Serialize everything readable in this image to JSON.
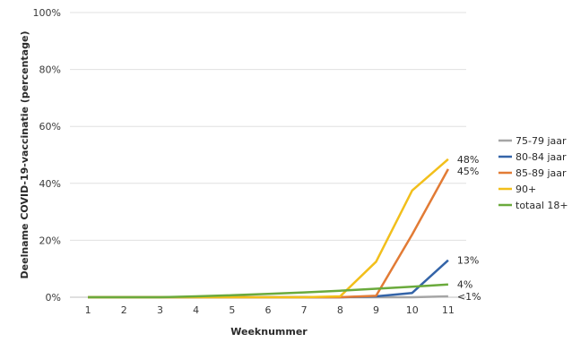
{
  "chart_data": {
    "type": "line",
    "xlabel": "Weeknummer",
    "ylabel": "Deelname COVID-19-vaccinatie (percentage)",
    "x": [
      1,
      2,
      3,
      4,
      5,
      6,
      7,
      8,
      9,
      10,
      11
    ],
    "ylim": [
      0,
      100
    ],
    "yticks": [
      "0%",
      "20%",
      "40%",
      "60%",
      "80%",
      "100%"
    ],
    "grid": true,
    "legend": "right",
    "series": [
      {
        "name": "75-79 jaar",
        "color": "#a5a5a5",
        "values": [
          0,
          0,
          0,
          0,
          0,
          0,
          0,
          0,
          0,
          0,
          0.3
        ],
        "end_label": "<1%"
      },
      {
        "name": "80-84 jaar",
        "color": "#3464a8",
        "values": [
          0,
          0,
          0,
          0,
          0,
          0,
          0,
          0,
          0.3,
          1.5,
          13
        ],
        "end_label": "13%"
      },
      {
        "name": "85-89 jaar",
        "color": "#e27b35",
        "values": [
          0,
          0,
          0,
          0,
          0,
          0,
          0,
          0,
          0.5,
          22,
          45
        ],
        "end_label": "45%"
      },
      {
        "name": "90+",
        "color": "#f2bf1b",
        "values": [
          0,
          0,
          0,
          0,
          0,
          0,
          0,
          0.3,
          12.5,
          37.5,
          48.5
        ],
        "end_label": "48%"
      },
      {
        "name": "totaal 18+",
        "color": "#6aaa3c",
        "values": [
          0,
          0,
          0,
          0.3,
          0.7,
          1.2,
          1.7,
          2.3,
          3.0,
          3.7,
          4.5
        ],
        "end_label": "4%"
      }
    ]
  }
}
